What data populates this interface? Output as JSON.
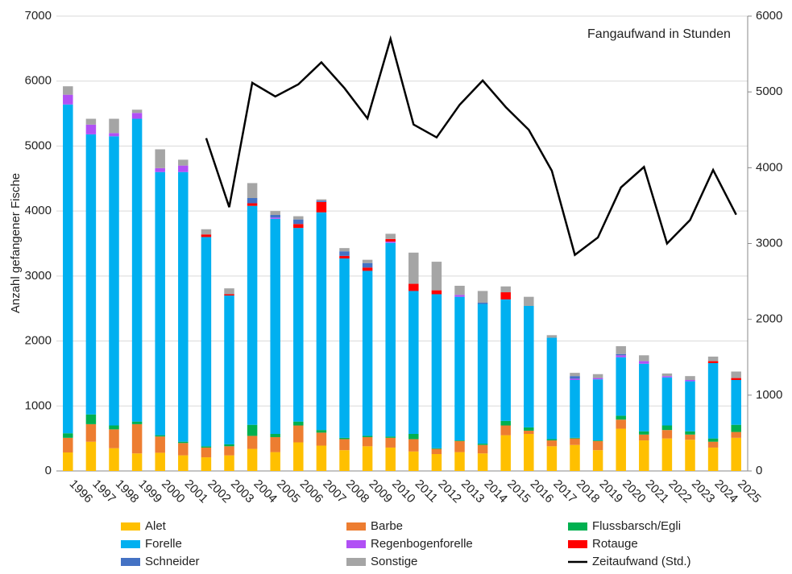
{
  "chart_data": {
    "type": "bar",
    "stacked": true,
    "y_label": "Anzahl gefangener Fische",
    "annotation": "Fangaufwand in Stunden",
    "categories": [
      "1996",
      "1997",
      "1998",
      "1999",
      "2000",
      "2001",
      "2002",
      "2003",
      "2004",
      "2005",
      "2006",
      "2007",
      "2008",
      "2009",
      "2010",
      "2011",
      "2012",
      "2013",
      "2014",
      "2015",
      "2016",
      "2017",
      "2018",
      "2019",
      "2020",
      "2021",
      "2022",
      "2023",
      "2024",
      "2025"
    ],
    "series": [
      {
        "name": "Alet",
        "color": "#ffc000",
        "values": [
          285,
          450,
          350,
          270,
          280,
          240,
          210,
          240,
          340,
          290,
          440,
          390,
          320,
          380,
          360,
          300,
          260,
          290,
          270,
          550,
          570,
          380,
          400,
          320,
          650,
          470,
          500,
          480,
          360,
          510
        ]
      },
      {
        "name": "Barbe",
        "color": "#ed7d31",
        "values": [
          225,
          270,
          290,
          450,
          250,
          190,
          150,
          140,
          200,
          230,
          260,
          200,
          170,
          140,
          150,
          190,
          80,
          170,
          130,
          150,
          50,
          90,
          100,
          140,
          140,
          90,
          130,
          80,
          90,
          90
        ]
      },
      {
        "name": "Flussbarsch/Egli",
        "color": "#00b050",
        "values": [
          70,
          150,
          60,
          40,
          20,
          20,
          20,
          30,
          170,
          50,
          60,
          40,
          20,
          20,
          20,
          80,
          10,
          10,
          20,
          70,
          50,
          20,
          10,
          10,
          60,
          50,
          70,
          50,
          50,
          110
        ]
      },
      {
        "name": "Forelle",
        "color": "#00b0f0",
        "values": [
          5060,
          4310,
          4450,
          4660,
          4050,
          4150,
          3220,
          2290,
          3370,
          3310,
          2980,
          3350,
          2760,
          2540,
          2980,
          2200,
          2370,
          2210,
          2150,
          1870,
          1870,
          1560,
          890,
          940,
          900,
          1040,
          740,
          770,
          1160,
          690
        ]
      },
      {
        "name": "Regenbogenforelle",
        "color": "#b150f5",
        "values": [
          150,
          150,
          50,
          90,
          60,
          100,
          0,
          0,
          0,
          20,
          0,
          0,
          0,
          0,
          20,
          0,
          0,
          30,
          0,
          0,
          0,
          0,
          20,
          20,
          30,
          40,
          20,
          20,
          0,
          0
        ]
      },
      {
        "name": "Rotauge",
        "color": "#ff0000",
        "values": [
          0,
          0,
          0,
          0,
          0,
          0,
          40,
          20,
          40,
          0,
          60,
          160,
          40,
          50,
          40,
          110,
          60,
          0,
          0,
          110,
          0,
          0,
          0,
          0,
          0,
          0,
          0,
          0,
          30,
          30
        ]
      },
      {
        "name": "Schneider",
        "color": "#4472c4",
        "values": [
          0,
          0,
          0,
          0,
          0,
          0,
          0,
          0,
          80,
          40,
          70,
          20,
          70,
          70,
          0,
          0,
          0,
          0,
          20,
          0,
          0,
          0,
          40,
          0,
          20,
          0,
          0,
          0,
          0,
          0
        ]
      },
      {
        "name": "Sonstige",
        "color": "#a5a5a5",
        "values": [
          130,
          90,
          220,
          50,
          290,
          90,
          80,
          90,
          230,
          60,
          50,
          20,
          50,
          50,
          80,
          480,
          440,
          140,
          180,
          90,
          140,
          40,
          50,
          60,
          120,
          90,
          40,
          60,
          70,
          100
        ]
      },
      {
        "name": "Zeitaufwand (Std.)",
        "color": "#000000",
        "type": "line",
        "axis": "y2",
        "values": [
          null,
          null,
          null,
          null,
          null,
          null,
          4390,
          3480,
          5120,
          4940,
          5100,
          5390,
          5050,
          4650,
          5700,
          4570,
          4400,
          4830,
          5150,
          4800,
          4500,
          3960,
          2850,
          3080,
          3740,
          4010,
          3000,
          3310,
          3970,
          3380
        ]
      }
    ],
    "ylim": [
      0,
      7000
    ],
    "yticks": [
      0,
      1000,
      2000,
      3000,
      4000,
      5000,
      6000,
      7000
    ],
    "y2lim": [
      0,
      6000
    ],
    "y2ticks": [
      0,
      1000,
      2000,
      3000,
      4000,
      5000,
      6000
    ],
    "grid": true,
    "legend": "bottom"
  }
}
